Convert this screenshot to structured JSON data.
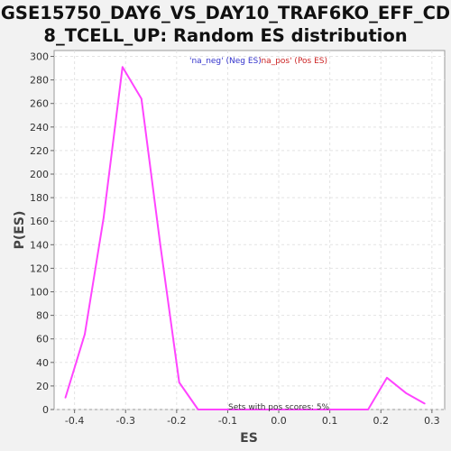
{
  "chart_data": {
    "type": "line",
    "title_line1": "GSE15750_DAY6_VS_DAY10_TRAF6KO_EFF_CD",
    "title_line2": "8_TCELL_UP: Random ES distribution",
    "xlabel": "ES",
    "ylabel": "P(ES)",
    "xlim": [
      -0.44,
      0.325
    ],
    "ylim": [
      0,
      305
    ],
    "xticks": [
      -0.4,
      -0.3,
      -0.2,
      -0.1,
      0.0,
      0.1,
      0.2,
      0.3
    ],
    "xtick_labels": [
      "-0.4",
      "-0.3",
      "-0.2",
      "-0.1",
      "0.0",
      "0.1",
      "0.2",
      "0.3"
    ],
    "yticks": [
      0,
      20,
      40,
      60,
      80,
      100,
      120,
      140,
      160,
      180,
      200,
      220,
      240,
      260,
      280,
      300
    ],
    "ytick_labels": [
      "0",
      "20",
      "40",
      "60",
      "80",
      "100",
      "120",
      "140",
      "160",
      "180",
      "200",
      "220",
      "240",
      "260",
      "280",
      "300"
    ],
    "grid": true,
    "series": [
      {
        "color": "#ff44ff",
        "x": [
          -0.418,
          -0.38,
          -0.343,
          -0.306,
          -0.269,
          -0.232,
          -0.195,
          -0.158,
          -0.121,
          -0.084,
          -0.047,
          -0.01,
          0.027,
          0.064,
          0.101,
          0.138,
          0.175,
          0.212,
          0.249,
          0.286
        ],
        "y": [
          10,
          64,
          163,
          291,
          264,
          140,
          23,
          0,
          0,
          0,
          0,
          0,
          0,
          0,
          0,
          0,
          0,
          27,
          14,
          5
        ]
      }
    ],
    "legend": {
      "neg_label": "'na_neg' (Neg ES)",
      "pos_label": "'na_pos' (Pos ES)",
      "neg_color": "#3333cc",
      "pos_color": "#cc2222"
    },
    "annotation": "Sets with pos scores: 5%"
  }
}
